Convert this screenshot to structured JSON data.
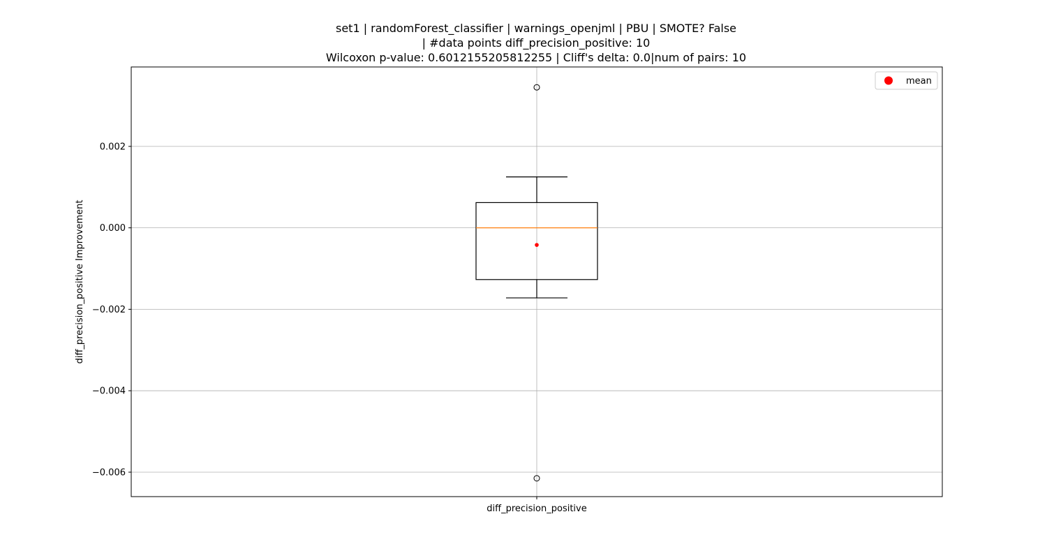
{
  "chart_data": {
    "type": "box",
    "title_lines": [
      "set1 | randomForest_classifier | warnings_openjml | PBU | SMOTE? False",
      "| #data points diff_precision_positive: 10",
      "Wilcoxon p-value: 0.6012155205812255 | Cliff's delta: 0.0|num of pairs: 10"
    ],
    "xlabel": "",
    "ylabel": "diff_precision_positive Improvement",
    "categories": [
      "diff_precision_positive"
    ],
    "ylim": [
      -0.0066,
      0.00395
    ],
    "yticks": [
      -0.006,
      -0.004,
      -0.002,
      0.0,
      0.002
    ],
    "ytick_labels": [
      "−0.006",
      "−0.004",
      "−0.002",
      "0.000",
      "0.002"
    ],
    "grid": true,
    "box": {
      "whisker_low": -0.00172,
      "q1": -0.00127,
      "median": 0.0,
      "q3": 0.00062,
      "whisker_high": 0.00125,
      "mean": -0.00042,
      "outliers": [
        0.00345,
        -0.00615
      ]
    },
    "legend": {
      "placement": "top-right",
      "entries": [
        {
          "label": "mean",
          "color": "#ff0000"
        }
      ]
    },
    "colors": {
      "box": "#000000",
      "median": "#ff7f0e",
      "mean": "#ff0000",
      "grid": "#b0b0b0"
    }
  }
}
